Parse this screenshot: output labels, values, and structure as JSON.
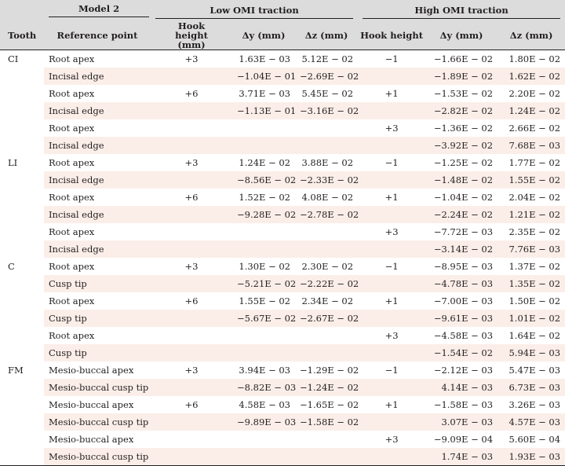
{
  "header": {
    "model_label": "Model 2",
    "low_group": "Low OMI traction",
    "high_group": "High OMI traction",
    "columns": {
      "tooth": "Tooth",
      "reference_point": "Reference point",
      "low_hook_height": "Hook height (mm)",
      "low_dy": "Δy (mm)",
      "low_dz": "Δz (mm)",
      "high_hook_height": "Hook height",
      "high_dy": "Δy (mm)",
      "high_dz": "Δz (mm)"
    }
  },
  "rows": [
    {
      "tooth": "CI",
      "ref": "Root apex",
      "lhh": "+3",
      "ldy": "1.63E − 03",
      "ldz": "5.12E − 02",
      "hhh": "−1",
      "hdy": "−1.66E − 02",
      "hdz": "1.80E − 02"
    },
    {
      "tooth": "",
      "ref": "Incisal edge",
      "lhh": "",
      "ldy": "−1.04E − 01",
      "ldz": "−2.69E − 02",
      "hhh": "",
      "hdy": "−1.89E − 02",
      "hdz": "1.62E − 02"
    },
    {
      "tooth": "",
      "ref": "Root apex",
      "lhh": "+6",
      "ldy": "3.71E − 03",
      "ldz": "5.45E − 02",
      "hhh": "+1",
      "hdy": "−1.53E − 02",
      "hdz": "2.20E − 02"
    },
    {
      "tooth": "",
      "ref": "Incisal edge",
      "lhh": "",
      "ldy": "−1.13E − 01",
      "ldz": "−3.16E − 02",
      "hhh": "",
      "hdy": "−2.82E − 02",
      "hdz": "1.24E − 02"
    },
    {
      "tooth": "",
      "ref": "Root apex",
      "lhh": "",
      "ldy": "",
      "ldz": "",
      "hhh": "+3",
      "hdy": "−1.36E − 02",
      "hdz": "2.66E − 02"
    },
    {
      "tooth": "",
      "ref": "Incisal edge",
      "lhh": "",
      "ldy": "",
      "ldz": "",
      "hhh": "",
      "hdy": "−3.92E − 02",
      "hdz": "7.68E − 03"
    },
    {
      "tooth": "LI",
      "ref": "Root apex",
      "lhh": "+3",
      "ldy": "1.24E − 02",
      "ldz": "3.88E − 02",
      "hhh": "−1",
      "hdy": "−1.25E − 02",
      "hdz": "1.77E − 02"
    },
    {
      "tooth": "",
      "ref": "Incisal edge",
      "lhh": "",
      "ldy": "−8.56E − 02",
      "ldz": "−2.33E − 02",
      "hhh": "",
      "hdy": "−1.48E − 02",
      "hdz": "1.55E − 02"
    },
    {
      "tooth": "",
      "ref": "Root apex",
      "lhh": "+6",
      "ldy": "1.52E − 02",
      "ldz": "4.08E − 02",
      "hhh": "+1",
      "hdy": "−1.04E − 02",
      "hdz": "2.04E − 02"
    },
    {
      "tooth": "",
      "ref": "Incisal edge",
      "lhh": "",
      "ldy": "−9.28E − 02",
      "ldz": "−2.78E − 02",
      "hhh": "",
      "hdy": "−2.24E − 02",
      "hdz": "1.21E − 02"
    },
    {
      "tooth": "",
      "ref": "Root apex",
      "lhh": "",
      "ldy": "",
      "ldz": "",
      "hhh": "+3",
      "hdy": "−7.72E − 03",
      "hdz": "2.35E − 02"
    },
    {
      "tooth": "",
      "ref": "Incisal edge",
      "lhh": "",
      "ldy": "",
      "ldz": "",
      "hhh": "",
      "hdy": "−3.14E − 02",
      "hdz": "7.76E − 03"
    },
    {
      "tooth": "C",
      "ref": "Root apex",
      "lhh": "+3",
      "ldy": "1.30E − 02",
      "ldz": "2.30E − 02",
      "hhh": "−1",
      "hdy": "−8.95E − 03",
      "hdz": "1.37E − 02"
    },
    {
      "tooth": "",
      "ref": "Cusp tip",
      "lhh": "",
      "ldy": "−5.21E − 02",
      "ldz": "−2.22E − 02",
      "hhh": "",
      "hdy": "−4.78E − 03",
      "hdz": "1.35E − 02"
    },
    {
      "tooth": "",
      "ref": "Root apex",
      "lhh": "+6",
      "ldy": "1.55E − 02",
      "ldz": "2.34E − 02",
      "hhh": "+1",
      "hdy": "−7.00E − 03",
      "hdz": "1.50E − 02"
    },
    {
      "tooth": "",
      "ref": "Cusp tip",
      "lhh": "",
      "ldy": "−5.67E − 02",
      "ldz": "−2.67E − 02",
      "hhh": "",
      "hdy": "−9.61E − 03",
      "hdz": "1.01E − 02"
    },
    {
      "tooth": "",
      "ref": "Root apex",
      "lhh": "",
      "ldy": "",
      "ldz": "",
      "hhh": "+3",
      "hdy": "−4.58E − 03",
      "hdz": "1.64E − 02"
    },
    {
      "tooth": "",
      "ref": "Cusp tip",
      "lhh": "",
      "ldy": "",
      "ldz": "",
      "hhh": "",
      "hdy": "−1.54E − 02",
      "hdz": "5.94E − 03"
    },
    {
      "tooth": "FM",
      "ref": "Mesio-buccal apex",
      "lhh": "+3",
      "ldy": "3.94E − 03",
      "ldz": "−1.29E − 02",
      "hhh": "−1",
      "hdy": "−2.12E − 03",
      "hdz": "5.47E − 03"
    },
    {
      "tooth": "",
      "ref": "Mesio-buccal cusp tip",
      "lhh": "",
      "ldy": "−8.82E − 03",
      "ldz": "−1.24E − 02",
      "hhh": "",
      "hdy": "4.14E − 03",
      "hdz": "6.73E − 03"
    },
    {
      "tooth": "",
      "ref": "Mesio-buccal apex",
      "lhh": "+6",
      "ldy": "4.58E − 03",
      "ldz": "−1.65E − 02",
      "hhh": "+1",
      "hdy": "−1.58E − 03",
      "hdz": "3.26E − 03"
    },
    {
      "tooth": "",
      "ref": "Mesio-buccal cusp tip",
      "lhh": "",
      "ldy": "−9.89E − 03",
      "ldz": "−1.58E − 02",
      "hhh": "",
      "hdy": "3.07E − 03",
      "hdz": "4.57E − 03"
    },
    {
      "tooth": "",
      "ref": "Mesio-buccal apex",
      "lhh": "",
      "ldy": "",
      "ldz": "",
      "hhh": "+3",
      "hdy": "−9.09E − 04",
      "hdz": "5.60E − 04"
    },
    {
      "tooth": "",
      "ref": "Mesio-buccal cusp tip",
      "lhh": "",
      "ldy": "",
      "ldz": "",
      "hhh": "",
      "hdy": "1.74E − 03",
      "hdz": "1.93E − 03"
    }
  ]
}
